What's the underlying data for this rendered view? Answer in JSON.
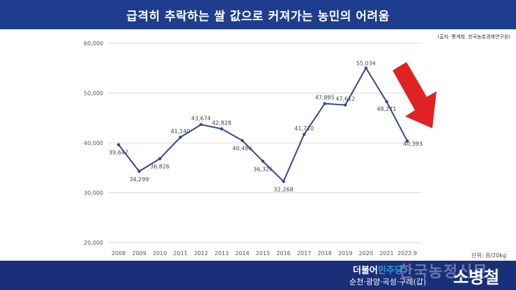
{
  "banner": {
    "title": "급격히 추락하는 쌀 값으로 커져가는 농민의 어려움"
  },
  "source": "(출처: 통계청, 한국농촌경제연구원)",
  "unit": "단위: 원/20kg",
  "footer": {
    "brand_a": "더불어",
    "brand_b": "민주당",
    "district": "순천·광양·곡성·구례(갑)",
    "name": "소병철",
    "watermark": "한국농정신문"
  },
  "colors": {
    "banner": "#1f3d8f",
    "line": "#2e4a8e",
    "arrow": "#e02222",
    "footer": "#1a2f7a"
  },
  "chart_data": {
    "type": "line",
    "categories": [
      "2008",
      "2009",
      "2010",
      "2011",
      "2012",
      "2013",
      "2014",
      "2015",
      "2016",
      "2017",
      "2018",
      "2019",
      "2020",
      "2021",
      "2022.9"
    ],
    "series": [
      {
        "values": [
          39647,
          34299,
          36826,
          41140,
          43674,
          42828,
          40486,
          36326,
          32268,
          41710,
          47885,
          47612,
          55034,
          48271,
          40393
        ],
        "labels": [
          "39,647",
          "34,299",
          "36,826",
          "41,140",
          "43,674",
          "42,828",
          "40,486",
          "36,326",
          "32,268",
          "41,710",
          "47,885",
          "47,612",
          "55,034",
          "48,271",
          "40,393"
        ]
      }
    ],
    "yticks": [
      "20,000",
      "30,000",
      "40,000",
      "50,000",
      "60,000"
    ],
    "ylim": [
      20000,
      60000
    ],
    "grid": "horizontal",
    "annotation": "red-down-arrow"
  }
}
